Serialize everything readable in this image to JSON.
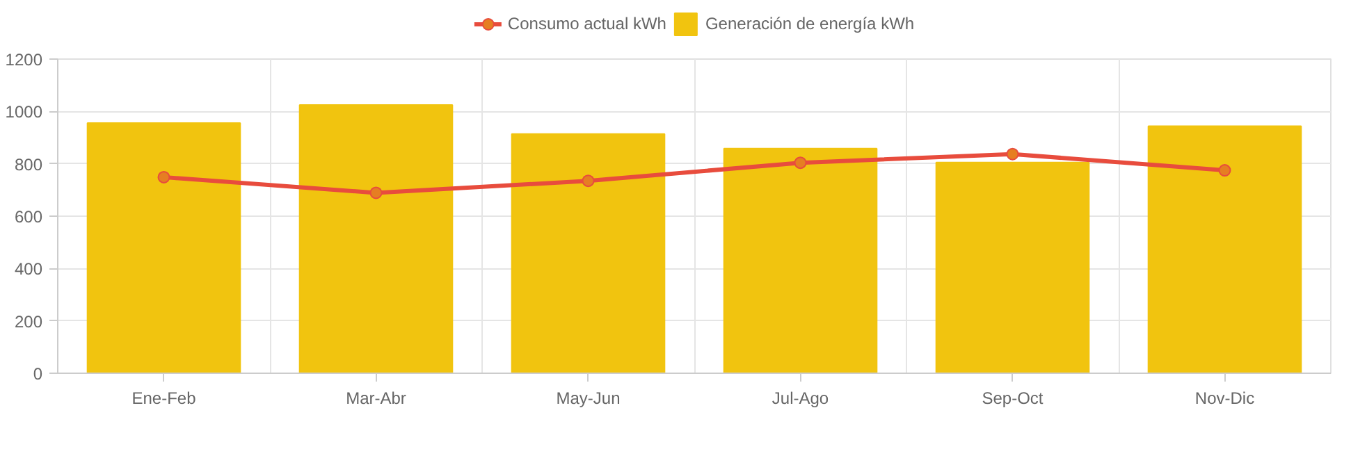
{
  "chart_data": {
    "type": "bar",
    "categories": [
      "Ene-Feb",
      "Mar-Abr",
      "May-Jun",
      "Jul-Ago",
      "Sep-Oct",
      "Nov-Dic"
    ],
    "series": [
      {
        "name": "Consumo actual kWh",
        "type": "line",
        "color": "#e84c3d",
        "values": [
          749,
          689,
          735,
          804,
          837,
          775
        ]
      },
      {
        "name": "Generación de energía kWh",
        "color": "#f1c40f",
        "values": [
          956,
          1025,
          914,
          858,
          805,
          944
        ]
      }
    ],
    "ylim": [
      0,
      1200
    ],
    "yticks": [
      0,
      200,
      400,
      600,
      800,
      1000,
      1200
    ],
    "grid": true,
    "legend": "top",
    "marker": "circle"
  }
}
